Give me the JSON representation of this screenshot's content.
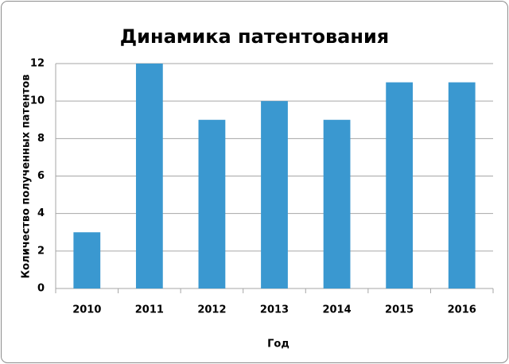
{
  "chart_data": {
    "type": "bar",
    "title": "Динамика патентования",
    "x_label": "Год",
    "y_label": "Количество полученных патентов",
    "categories": [
      "2010",
      "2011",
      "2012",
      "2013",
      "2014",
      "2015",
      "2016"
    ],
    "values": [
      3,
      12,
      9,
      10,
      9,
      11,
      11
    ],
    "color": "#3a98d0",
    "ylim": [
      0,
      12
    ],
    "yticks": [
      0,
      2,
      4,
      6,
      8,
      10,
      12
    ],
    "grid": true
  }
}
